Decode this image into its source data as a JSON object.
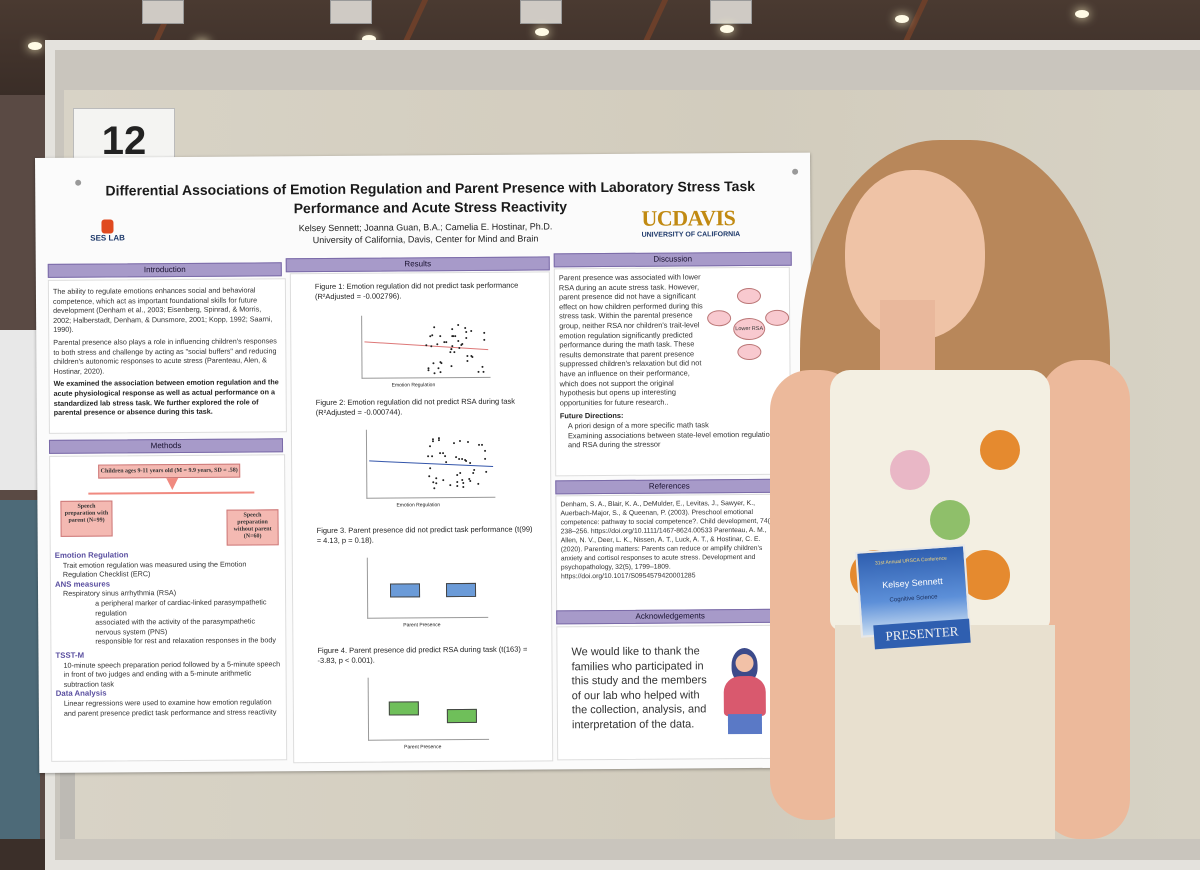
{
  "booth_number": "12",
  "poster": {
    "title": "Differential Associations of Emotion Regulation and Parent Presence with Laboratory Stress Task Performance and Acute Stress Reactivity",
    "authors": "Kelsey Sennett; Joanna Guan, B.A.; Camelia E. Hostinar, Ph.D.",
    "affiliation": "University of California, Davis, Center for Mind and Brain",
    "lab_logo": "SES LAB",
    "university_logo": "UCDAVIS",
    "university_subtitle": "UNIVERSITY OF CALIFORNIA",
    "sections": {
      "introduction": "Introduction",
      "results": "Results",
      "discussion": "Discussion",
      "methods": "Methods",
      "references": "References",
      "acknowledgements": "Acknowledgements"
    },
    "intro_bullets": [
      "The ability to regulate emotions enhances social and behavioral competence, which act as important foundational skills for future development (Denham et al., 2003; Eisenberg, Spinrad, & Morris, 2002; Halberstadt, Denham, & Dunsmore, 2001; Kopp, 1992; Saarni, 1990).",
      "Parental presence also plays a role in influencing children's responses to both stress and challenge by acting as \"social buffers\" and reducing children's autonomic responses to acute stress (Parenteau, Alen, & Hostinar, 2020).",
      "We examined the association between emotion regulation and the acute physiological response as well as actual performance on a standardized lab stress task. We further explored the role of parental presence or absence during this task."
    ],
    "methods_flow": {
      "top": "Children ages 9-11 years old (M = 9.9 years, SD = .58)",
      "left": "Speech preparation with parent (N=99)",
      "right": "Speech preparation without parent (N=60)"
    },
    "methods_text": {
      "er_head": "Emotion Regulation",
      "er_item": "Trait emotion regulation was measured using the Emotion Regulation Checklist (ERC)",
      "ans_head": "ANS measures",
      "ans_item": "Respiratory sinus arrhythmia (RSA)",
      "ans_sub1": "a peripheral marker of cardiac-linked parasympathetic regulation",
      "ans_sub2": "associated with the activity of the parasympathetic nervous system (PNS)",
      "ans_sub3": "responsible for rest and relaxation responses in the body",
      "tsst_head": "TSST-M",
      "tsst_item": "10-minute speech preparation period followed by a 5-minute speech in front of two judges and ending with a 5-minute arithmetic subtraction task",
      "da_head": "Data Analysis",
      "da_item": "Linear regressions were used to examine how emotion regulation and parent presence predict task performance and stress reactivity"
    },
    "figures": [
      {
        "caption": "Figure 1: Emotion regulation did not predict task performance (R²Adjusted = -0.002796).",
        "xlabel": "Emotion Regulation"
      },
      {
        "caption": "Figure 2: Emotion regulation did not predict RSA during task (R²Adjusted = -0.000744).",
        "xlabel": "Emotion Regulation"
      },
      {
        "caption": "Figure 3. Parent presence did not predict task performance (t(99) = 4.13, p = 0.18).",
        "xlabel": "Parent Presence"
      },
      {
        "caption": "Figure 4. Parent presence did predict RSA during task (t(163) = -3.83, p < 0.001).",
        "xlabel": "Parent Presence"
      }
    ],
    "discussion_text": "Parent presence was associated with lower RSA during an acute stress task. However, parent presence did not have a significant effect on how children performed during this stress task. Within the parental presence group, neither RSA nor children's trait-level emotion regulation significantly predicted performance during the math task. These results demonstrate that parent presence suppressed children's relaxation but did not have an influence on their performance, which does not support the original hypothesis but opens up interesting opportunities for future research..",
    "future_head": "Future Directions:",
    "future_items": [
      "A priori design of a more specific math task",
      "Examining associations between state-level emotion regulation and RSA during the stressor"
    ],
    "diagram_center": "Lower RSA",
    "references_text": "Denham, S. A., Blair, K. A., DeMulder, E., Levitas, J., Sawyer, K., Auerbach-Major, S., & Queenan, P. (2003). Preschool emotional competence: pathway to social competence?. Child development, 74(1), 238–256. https://doi.org/10.1111/1467-8624.00533 Parenteau, A. M., Allen, N. V., Deer, L. K., Nissen, A. T., Luck, A. T., & Hostinar, C. E. (2020). Parenting matters: Parents can reduce or amplify children's anxiety and cortisol responses to acute stress. Development and psychopathology, 32(5), 1799–1809. https://doi.org/10.1017/S0954579420001285",
    "acknowledgements_text": "We would like to thank the families who participated in this study and the members of our lab who helped with the collection, analysis, and interpretation of the data."
  },
  "badge": {
    "conference": "31st Annual URSCA Conference",
    "name": "Kelsey Sennett",
    "field": "Cognitive Science",
    "ribbon": "PRESENTER"
  },
  "colors": {
    "section_header": "#a79ac9",
    "ucd_gold": "#c18a12",
    "box_blue": "#6b9bd8",
    "box_green": "#6fbf5a",
    "badge_blue": "#2f5fb0"
  }
}
